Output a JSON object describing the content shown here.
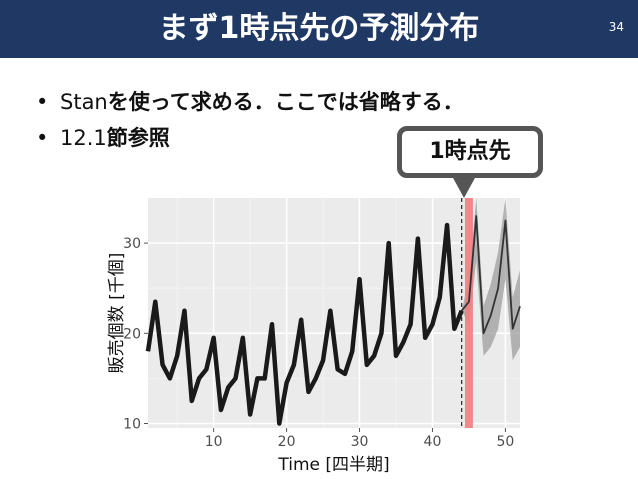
{
  "slide": {
    "title": "まず1時点先の予測分布",
    "page_number": "34",
    "bullets": [
      {
        "prefix": "Stan",
        "bold_text": "を使って求める．ここでは省略する．"
      },
      {
        "prefix": "12.1",
        "bold_text": "節参照"
      }
    ],
    "callout": "1時点先"
  },
  "colors": {
    "title_bar": "#1f3864",
    "series_line": "#1a1a1a",
    "forecast_band": "#999999",
    "highlight": "#f08080",
    "panel_bg": "#ebebeb"
  },
  "chart_data": {
    "type": "line",
    "xlabel": "Time [四半期]",
    "ylabel": "販売個数 [千個]",
    "xlim": [
      1,
      52
    ],
    "ylim": [
      9.5,
      35
    ],
    "x_ticks": [
      10,
      20,
      30,
      40,
      50
    ],
    "y_ticks": [
      10,
      20,
      30
    ],
    "grid": true,
    "series": [
      {
        "x": [
          1,
          2,
          3,
          4,
          5,
          6,
          7,
          8,
          9,
          10,
          11,
          12,
          13,
          14,
          15,
          16,
          17,
          18,
          19,
          20,
          21,
          22,
          23,
          24,
          25,
          26,
          27,
          28,
          29,
          30,
          31,
          32,
          33,
          34,
          35,
          36,
          37,
          38,
          39,
          40,
          41,
          42,
          43,
          44
        ],
        "values": [
          18,
          23.5,
          16.5,
          15,
          17.5,
          22.5,
          12.5,
          15,
          16,
          19.5,
          11.5,
          14,
          15,
          19.5,
          11,
          15,
          15,
          21,
          10,
          14.5,
          16.5,
          21.5,
          13.5,
          15,
          17,
          22.5,
          16,
          15.5,
          18,
          26,
          16.5,
          17.5,
          20,
          30,
          17.5,
          19,
          21,
          30.5,
          19.5,
          21,
          24,
          32,
          20.5,
          22.5
        ]
      },
      {
        "x": [
          44,
          45,
          46,
          47,
          48,
          49,
          50,
          51,
          52
        ],
        "values": [
          22.5,
          23.5,
          33,
          20,
          22,
          25,
          32.5,
          20.5,
          23
        ],
        "lower": [
          22.5,
          21,
          28,
          17.5,
          18.5,
          20.5,
          26,
          17,
          18.5
        ],
        "upper": [
          22.5,
          26,
          35,
          23,
          25.5,
          29,
          35,
          24,
          27
        ]
      }
    ],
    "vline_dashed_x": 44,
    "highlight_x": 45
  }
}
